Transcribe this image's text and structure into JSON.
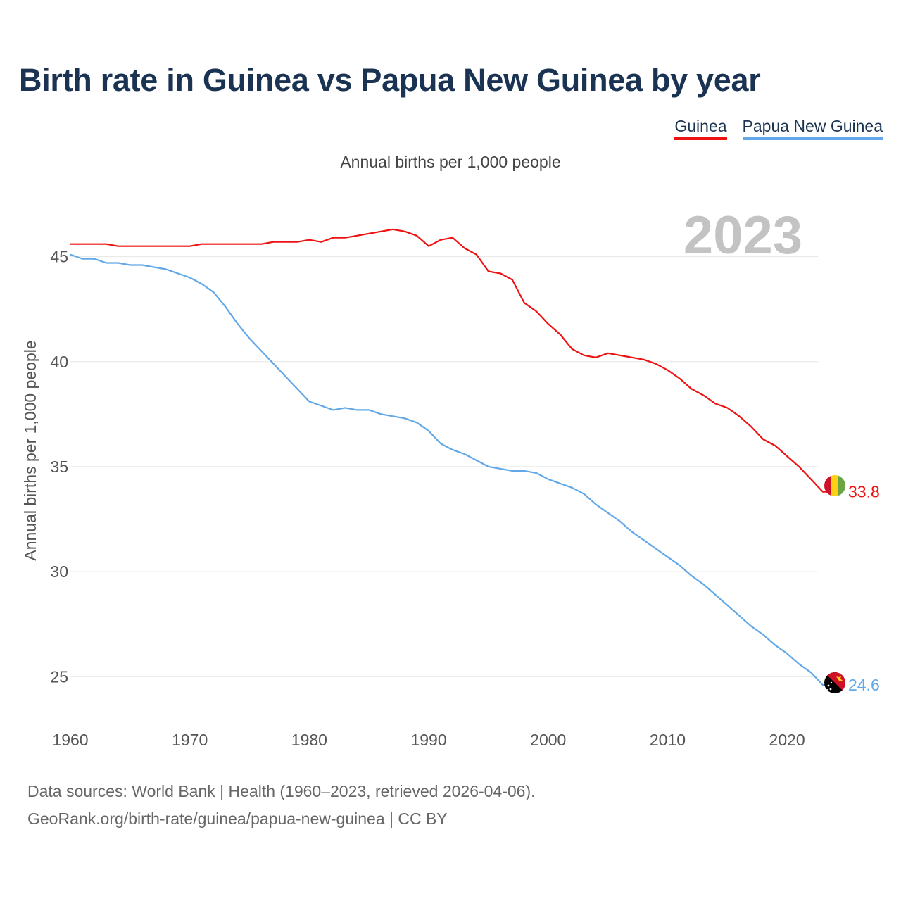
{
  "title": "Birth rate in Guinea vs Papua New Guinea by year",
  "subtitle": "Annual births per 1,000 people",
  "footer": {
    "line1": "Data sources: World Bank | Health (1960–2023, retrieved 2026-04-06).",
    "line2": "GeoRank.org/birth-rate/guinea/papua-new-guinea | CC BY"
  },
  "chart_data": {
    "type": "line",
    "title": "Birth rate in Guinea vs Papua New Guinea by year",
    "ylabel": "Annual births per 1,000 people",
    "xlabel": "",
    "year_watermark": "2023",
    "xlim": [
      1960,
      2024
    ],
    "ylim": [
      23.5,
      47.5
    ],
    "xticks": [
      1960,
      1970,
      1980,
      1990,
      2000,
      2010,
      2020
    ],
    "yticks": [
      25,
      30,
      35,
      40,
      45
    ],
    "grid": true,
    "legend_position": "top-right",
    "x": [
      1960,
      1961,
      1962,
      1963,
      1964,
      1965,
      1966,
      1967,
      1968,
      1969,
      1970,
      1971,
      1972,
      1973,
      1974,
      1975,
      1976,
      1977,
      1978,
      1979,
      1980,
      1981,
      1982,
      1983,
      1984,
      1985,
      1986,
      1987,
      1988,
      1989,
      1990,
      1991,
      1992,
      1993,
      1994,
      1995,
      1996,
      1997,
      1998,
      1999,
      2000,
      2001,
      2002,
      2003,
      2004,
      2005,
      2006,
      2007,
      2008,
      2009,
      2010,
      2011,
      2012,
      2013,
      2014,
      2015,
      2016,
      2017,
      2018,
      2019,
      2020,
      2021,
      2022,
      2023
    ],
    "series": [
      {
        "name": "Guinea",
        "color": "#ee1111",
        "end_label": "33.8",
        "flag": "guinea",
        "values": [
          45.6,
          45.6,
          45.6,
          45.6,
          45.5,
          45.5,
          45.5,
          45.5,
          45.5,
          45.5,
          45.5,
          45.6,
          45.6,
          45.6,
          45.6,
          45.6,
          45.6,
          45.7,
          45.7,
          45.7,
          45.8,
          45.7,
          45.9,
          45.9,
          46.0,
          46.1,
          46.2,
          46.3,
          46.2,
          46.0,
          45.5,
          45.8,
          45.9,
          45.4,
          45.1,
          44.3,
          44.2,
          43.9,
          42.8,
          42.4,
          41.8,
          41.3,
          40.6,
          40.3,
          40.2,
          40.4,
          40.3,
          40.2,
          40.1,
          39.9,
          39.6,
          39.2,
          38.7,
          38.4,
          38.0,
          37.8,
          37.4,
          36.9,
          36.3,
          36.0,
          35.5,
          35.0,
          34.4,
          33.8
        ]
      },
      {
        "name": "Papua New Guinea",
        "color": "#62a8e8",
        "end_label": "24.6",
        "flag": "papua-new-guinea",
        "values": [
          45.1,
          44.9,
          44.9,
          44.7,
          44.7,
          44.6,
          44.6,
          44.5,
          44.4,
          44.2,
          44.0,
          43.7,
          43.3,
          42.6,
          41.8,
          41.1,
          40.5,
          39.9,
          39.3,
          38.7,
          38.1,
          37.9,
          37.7,
          37.8,
          37.7,
          37.7,
          37.5,
          37.4,
          37.3,
          37.1,
          36.7,
          36.1,
          35.8,
          35.6,
          35.3,
          35.0,
          34.9,
          34.8,
          34.8,
          34.7,
          34.4,
          34.2,
          34.0,
          33.7,
          33.2,
          32.8,
          32.4,
          31.9,
          31.5,
          31.1,
          30.7,
          30.3,
          29.8,
          29.4,
          28.9,
          28.4,
          27.9,
          27.4,
          27.0,
          26.5,
          26.1,
          25.6,
          25.2,
          24.6
        ]
      }
    ]
  }
}
